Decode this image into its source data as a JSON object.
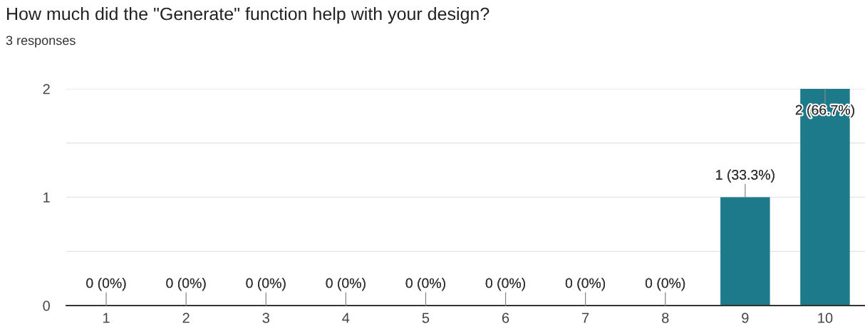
{
  "chart_data": {
    "type": "bar",
    "title": "How much did the \"Generate\" function help with your design?",
    "subtitle": "3 responses",
    "categories": [
      "1",
      "2",
      "3",
      "4",
      "5",
      "6",
      "7",
      "8",
      "9",
      "10"
    ],
    "values": [
      0,
      0,
      0,
      0,
      0,
      0,
      0,
      0,
      1,
      2
    ],
    "value_labels": [
      "0 (0%)",
      "0 (0%)",
      "0 (0%)",
      "0 (0%)",
      "0 (0%)",
      "0 (0%)",
      "0 (0%)",
      "0 (0%)",
      "1 (33.3%)",
      "2 (66.7%)"
    ],
    "color": "#1c7a8b",
    "ylim": [
      0,
      2
    ],
    "yticks": [
      0,
      {
        "value": 0.5,
        "label": null
      },
      1,
      {
        "value": 1.5,
        "label": null
      },
      2
    ],
    "grid": "y",
    "legend": false
  }
}
